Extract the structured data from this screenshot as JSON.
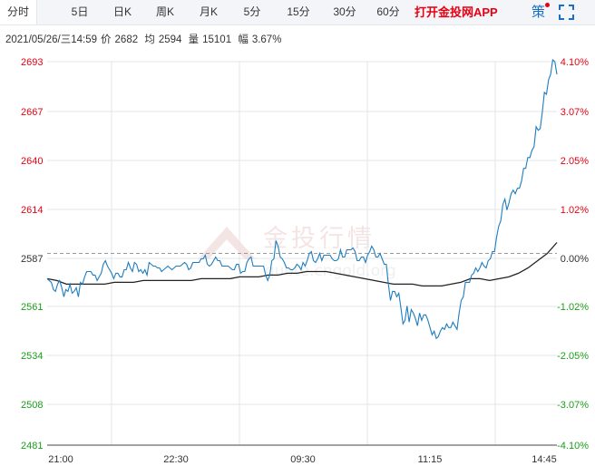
{
  "tabs": [
    {
      "label": "分时",
      "active": true
    },
    {
      "label": "5日",
      "active": false
    },
    {
      "label": "日K",
      "active": false
    },
    {
      "label": "周K",
      "active": false
    },
    {
      "label": "月K",
      "active": false
    },
    {
      "label": "5分",
      "active": false
    },
    {
      "label": "15分",
      "active": false
    },
    {
      "label": "30分",
      "active": false
    },
    {
      "label": "60分",
      "active": false
    }
  ],
  "promo_label": "打开金投网APP",
  "strategy_label": "策",
  "info": {
    "datetime": "2021/05/26/三14:59",
    "price_label": "价",
    "price": "2682",
    "avg_label": "均",
    "avg": "2594",
    "volume_label": "量",
    "volume": "15101",
    "change_label": "幅",
    "change": "3.67%"
  },
  "watermark": {
    "title": "金投行情",
    "url": "quote.cngold.org"
  },
  "colors": {
    "up": "#e60012",
    "down": "#1a9e1a",
    "price_line": "#1f7dbf",
    "avg_line": "#222222",
    "ref_line": "#9a9a9a",
    "grid": "#e3e6ea"
  },
  "chart_data": {
    "type": "line",
    "y_ticks": [
      "2693",
      "2667",
      "2640",
      "2614",
      "2587",
      "2561",
      "2534",
      "2508",
      "2481"
    ],
    "pct_ticks": [
      "4.10%",
      "3.07%",
      "2.05%",
      "1.02%",
      "0.00%",
      "-1.02%",
      "-2.05%",
      "-3.07%",
      "-4.10%"
    ],
    "x_ticks": [
      "21:00",
      "22:30",
      "09:30",
      "11:15",
      "14:45"
    ],
    "ylim": [
      2481,
      2693
    ],
    "reference_price": 2587,
    "grid": true,
    "series": [
      {
        "values": [
          2573,
          2572,
          2571,
          2567,
          2566,
          2570,
          2572,
          2568,
          2563,
          2567,
          2566,
          2570,
          2565,
          2566,
          2568,
          2563,
          2571,
          2570,
          2574,
          2577,
          2577,
          2577,
          2575,
          2575,
          2572,
          2574,
          2576,
          2581,
          2583,
          2580,
          2578,
          2576,
          2573,
          2576,
          2576,
          2574,
          2574,
          2578,
          2578,
          2582,
          2579,
          2577,
          2582,
          2581,
          2577,
          2578,
          2576,
          2578,
          2575,
          2582,
          2581,
          2580,
          2580,
          2579,
          2579,
          2577,
          2578,
          2579,
          2580,
          2579,
          2578,
          2579,
          2580,
          2580,
          2580,
          2581,
          2582,
          2581,
          2578,
          2579,
          2582,
          2582,
          2582,
          2582,
          2584,
          2584,
          2586,
          2581,
          2580,
          2581,
          2583,
          2585,
          2583,
          2583,
          2580,
          2580,
          2580,
          2580,
          2579,
          2578,
          2578,
          2581,
          2581,
          2576,
          2577,
          2577,
          2582,
          2584,
          2585,
          2580,
          2580,
          2580,
          2580,
          2580,
          2580,
          2575,
          2572,
          2575,
          2583,
          2584,
          2594,
          2591,
          2585,
          2584,
          2582,
          2579,
          2579,
          2578,
          2578,
          2579,
          2581,
          2580,
          2578,
          2582,
          2580,
          2583,
          2587,
          2588,
          2583,
          2582,
          2584,
          2587,
          2583,
          2586,
          2586,
          2586,
          2586,
          2584,
          2583,
          2583,
          2584,
          2589,
          2585,
          2585,
          2589,
          2589,
          2589,
          2590,
          2588,
          2583,
          2583,
          2585,
          2585,
          2582,
          2586,
          2588,
          2591,
          2589,
          2585,
          2585,
          2587,
          2584,
          2581,
          2581,
          2570,
          2561,
          2566,
          2566,
          2563,
          2565,
          2557,
          2548,
          2550,
          2558,
          2549,
          2556,
          2554,
          2551,
          2547,
          2554,
          2550,
          2553,
          2553,
          2550,
          2546,
          2542,
          2544,
          2540,
          2541,
          2544,
          2546,
          2545,
          2548,
          2546,
          2546,
          2549,
          2547,
          2545,
          2554,
          2561,
          2563,
          2571,
          2571,
          2571,
          2575,
          2576,
          2579,
          2577,
          2579,
          2582,
          2580,
          2579,
          2583,
          2584,
          2588,
          2588,
          2596,
          2602,
          2605,
          2614,
          2617,
          2611,
          2615,
          2620,
          2622,
          2620,
          2623,
          2623,
          2627,
          2634,
          2634,
          2640,
          2640,
          2644,
          2646,
          2657,
          2655,
          2656,
          2665,
          2676,
          2675,
          2683,
          2686,
          2694,
          2693,
          2686
        ]
      },
      {
        "values": [
          2573,
          2572,
          2570,
          2570,
          2570,
          2570,
          2570,
          2571,
          2571,
          2571,
          2572,
          2572,
          2572,
          2572,
          2572,
          2572,
          2573,
          2573,
          2573,
          2573,
          2574,
          2574,
          2574,
          2575,
          2575,
          2576,
          2576,
          2577,
          2577,
          2577,
          2576,
          2575,
          2574,
          2573,
          2572,
          2571,
          2570,
          2570,
          2570,
          2569,
          2569,
          2569,
          2570,
          2571,
          2573,
          2573,
          2572,
          2573,
          2574,
          2576,
          2579,
          2583,
          2587,
          2593
        ]
      }
    ]
  }
}
